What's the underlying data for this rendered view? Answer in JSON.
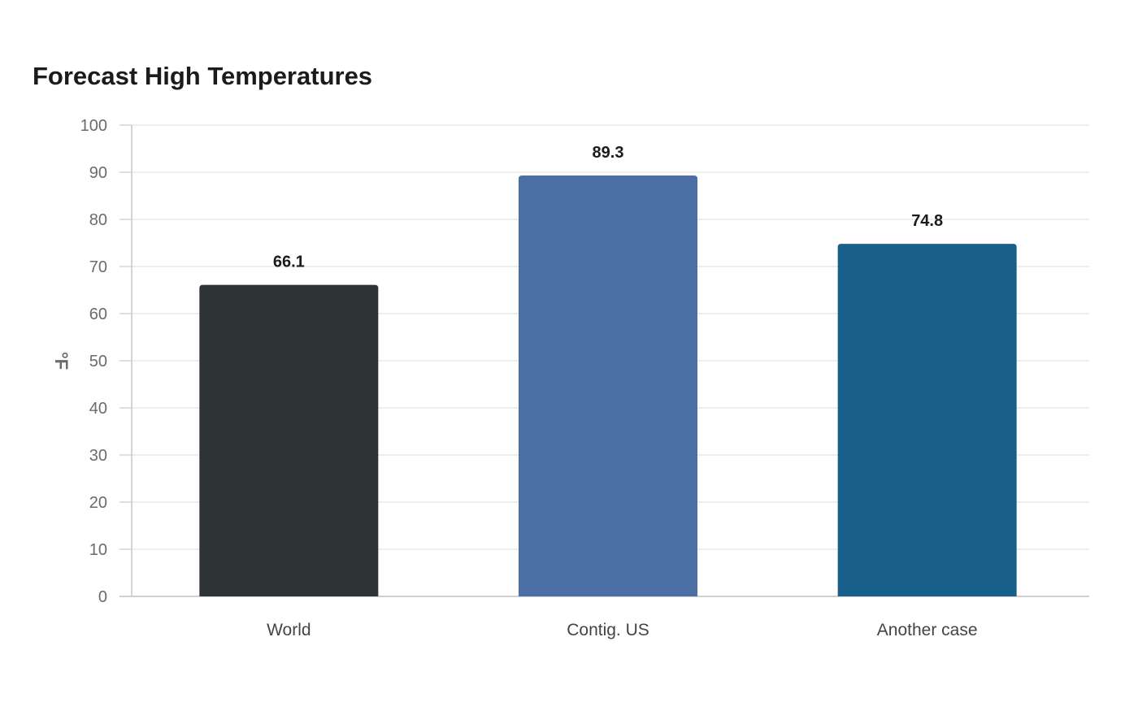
{
  "chart_data": {
    "type": "bar",
    "title": "Forecast High Temperatures",
    "xlabel": "",
    "ylabel": "°F",
    "categories": [
      "World",
      "Contig. US",
      "Another case"
    ],
    "values": [
      66.1,
      89.3,
      74.8
    ],
    "colors": [
      "#2e3436",
      "#4c6fa5",
      "#186089"
    ],
    "ylim": [
      0,
      100
    ],
    "yticks": [
      0,
      10,
      20,
      30,
      40,
      50,
      60,
      70,
      80,
      90,
      100
    ],
    "grid": true,
    "legend": "none"
  }
}
